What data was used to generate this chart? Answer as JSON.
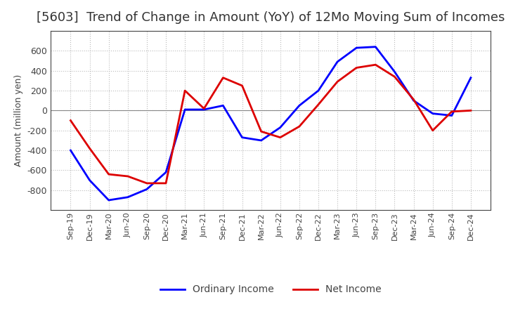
{
  "title": "[5603]  Trend of Change in Amount (YoY) of 12Mo Moving Sum of Incomes",
  "ylabel": "Amount (million yen)",
  "background_color": "#ffffff",
  "plot_background": "#ffffff",
  "x_labels": [
    "Sep-19",
    "Dec-19",
    "Mar-20",
    "Jun-20",
    "Sep-20",
    "Dec-20",
    "Mar-21",
    "Jun-21",
    "Sep-21",
    "Dec-21",
    "Mar-22",
    "Jun-22",
    "Sep-22",
    "Dec-22",
    "Mar-23",
    "Jun-23",
    "Sep-23",
    "Dec-23",
    "Mar-24",
    "Jun-24",
    "Sep-24",
    "Dec-24"
  ],
  "ordinary_income": [
    -400,
    -700,
    -900,
    -870,
    -790,
    -620,
    10,
    10,
    50,
    -270,
    -300,
    -170,
    50,
    200,
    490,
    630,
    640,
    390,
    100,
    -30,
    -50,
    330
  ],
  "net_income": [
    -100,
    -380,
    -640,
    -660,
    -730,
    -730,
    200,
    20,
    330,
    250,
    -210,
    -270,
    -160,
    60,
    290,
    430,
    460,
    340,
    110,
    -200,
    -10,
    0
  ],
  "ordinary_income_color": "#0000ff",
  "net_income_color": "#dd0000",
  "ylim": [
    -1000,
    800
  ],
  "yticks": [
    -800,
    -600,
    -400,
    -200,
    0,
    200,
    400,
    600
  ],
  "line_width": 2.0,
  "legend_labels": [
    "Ordinary Income",
    "Net Income"
  ],
  "grid_color": "#bbbbbb",
  "title_fontsize": 13,
  "title_color": "#333333"
}
